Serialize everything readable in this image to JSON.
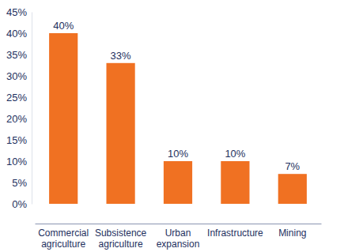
{
  "chart_data": {
    "type": "bar",
    "categories": [
      "Commercial agriculture",
      "Subsistence agriculture",
      "Urban expansion",
      "Infrastructure",
      "Mining"
    ],
    "values": [
      40,
      33,
      10,
      10,
      7
    ],
    "value_labels": [
      "40%",
      "33%",
      "10%",
      "10%",
      "7%"
    ],
    "color": "#f07122",
    "ylim": [
      0,
      45
    ],
    "yticks": [
      {
        "value": 0,
        "label": "0%"
      },
      {
        "value": 5,
        "label": "5%"
      },
      {
        "value": 10,
        "label": "10%"
      },
      {
        "value": 15,
        "label": "15%"
      },
      {
        "value": 20,
        "label": "20%"
      },
      {
        "value": 25,
        "label": "25%"
      },
      {
        "value": 30,
        "label": "30%"
      },
      {
        "value": 35,
        "label": "35%"
      },
      {
        "value": 40,
        "label": "40%"
      },
      {
        "value": 45,
        "label": "45%"
      }
    ],
    "data_labels": true,
    "grid": false
  }
}
